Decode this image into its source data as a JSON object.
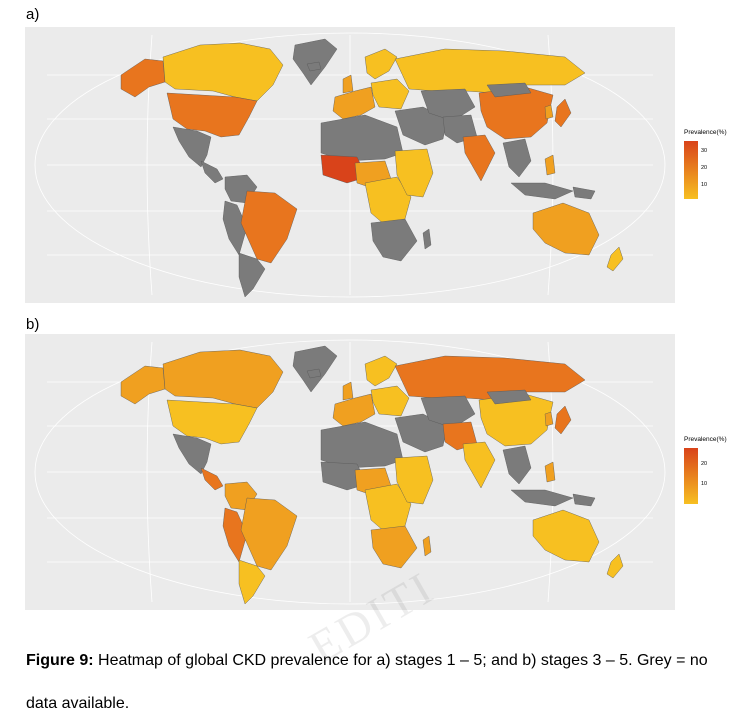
{
  "panels": [
    {
      "label": "a)",
      "legend": {
        "title": "Prevalence(%)",
        "ticks": [
          "30",
          "20",
          "10"
        ],
        "gradient": [
          "#d9431a",
          "#f7c021"
        ]
      }
    },
    {
      "label": "b)",
      "legend": {
        "title": "Prevalence(%)",
        "ticks": [
          "20",
          "10"
        ],
        "gradient": [
          "#d9431a",
          "#f7c021"
        ]
      }
    }
  ],
  "caption": {
    "bold": "Figure 9:",
    "text": " Heatmap of global CKD prevalence for a) stages 1 – 5; and b) stages 3 – 5. Grey = no",
    "line2": "data available."
  },
  "watermark": "EDITI",
  "colors": {
    "background": "#ebebeb",
    "no_data": "#7b7b7b",
    "low": "#f7c021",
    "mid": "#f0a020",
    "high": "#e8751e",
    "very_high": "#d9431a"
  }
}
